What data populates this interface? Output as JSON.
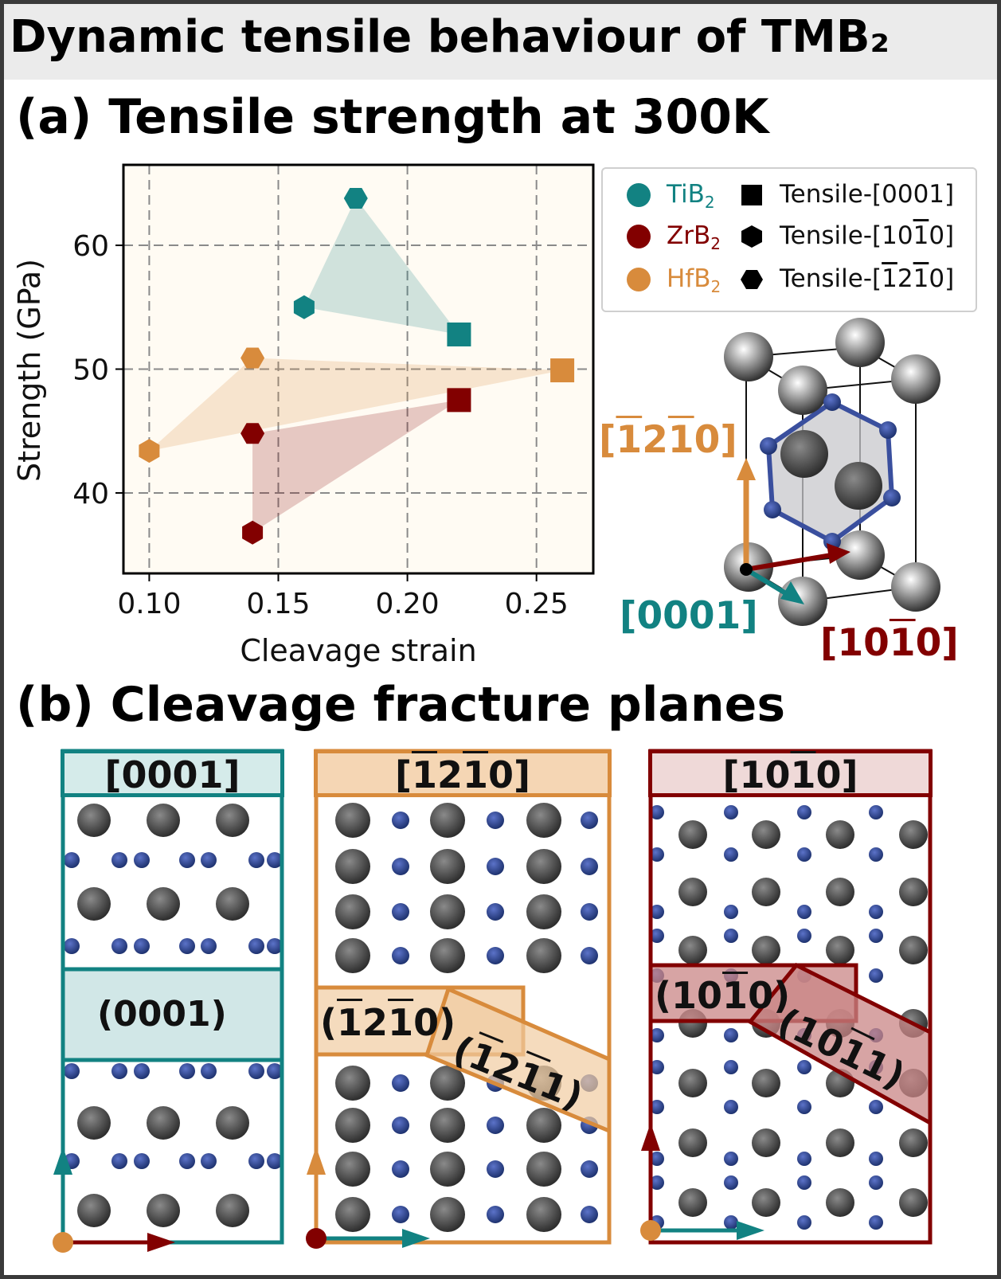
{
  "title": "Dynamic tensile behaviour of TMB₂",
  "sections": {
    "a": "(a) Tensile strength at 300K",
    "b": "(b) Cleavage fracture planes"
  },
  "colors": {
    "TiB2": "#128282",
    "ZrB2": "#820000",
    "HfB2": "#d88b3c",
    "plot_bg": "#fffbf3",
    "atom_metal": "#3d3d3d",
    "atom_boron": "#27418c"
  },
  "chart_data": {
    "type": "scatter",
    "xlabel": "Cleavage strain",
    "ylabel": "Strength (GPa)",
    "xlim": [
      0.09,
      0.272
    ],
    "ylim": [
      33.5,
      66.5
    ],
    "xticks": [
      "0.10",
      "0.15",
      "0.20",
      "0.25"
    ],
    "yticks": [
      "40",
      "50",
      "60"
    ],
    "grid": true,
    "legend_position": "outside-right",
    "series": [
      {
        "name": "TiB2",
        "points": [
          {
            "dir": "[0001]",
            "marker": "square",
            "x": 0.22,
            "y": 52.8
          },
          {
            "dir": "[10-10]",
            "marker": "hexagon",
            "x": 0.16,
            "y": 55.0
          },
          {
            "dir": "[-12-10]",
            "marker": "hexagon-flat",
            "x": 0.18,
            "y": 63.8
          }
        ]
      },
      {
        "name": "ZrB2",
        "points": [
          {
            "dir": "[0001]",
            "marker": "square",
            "x": 0.22,
            "y": 47.5
          },
          {
            "dir": "[10-10]",
            "marker": "hexagon",
            "x": 0.14,
            "y": 36.8
          },
          {
            "dir": "[-12-10]",
            "marker": "hexagon-flat",
            "x": 0.14,
            "y": 44.8
          }
        ]
      },
      {
        "name": "HfB2",
        "points": [
          {
            "dir": "[0001]",
            "marker": "square",
            "x": 0.26,
            "y": 49.9
          },
          {
            "dir": "[10-10]",
            "marker": "hexagon",
            "x": 0.1,
            "y": 43.4
          },
          {
            "dir": "[-12-10]",
            "marker": "hexagon-flat",
            "x": 0.14,
            "y": 50.9
          }
        ]
      }
    ]
  },
  "legend": {
    "materials": [
      "TiB",
      "ZrB",
      "HfB"
    ],
    "subscript": "2",
    "tensile_prefix": "Tensile-",
    "tensile": [
      "[0001]",
      "[10",
      "1",
      "0]",
      "[",
      "1",
      "2",
      "1",
      "0]"
    ]
  },
  "directions": {
    "d0001": "[0001]",
    "open": "[",
    "close": "]",
    "one": "1",
    "two": "2",
    "zero": "0",
    "ten": "10",
    "eleven": "1"
  },
  "panels": {
    "p1": {
      "head": "[0001]",
      "plane": "(0001)"
    },
    "p2": {
      "plane_a_pre": "(",
      "plane_b_pre": "("
    },
    "p3": {
      "plane_a_pre": "(10",
      "plane_b_pre": "(10"
    }
  }
}
